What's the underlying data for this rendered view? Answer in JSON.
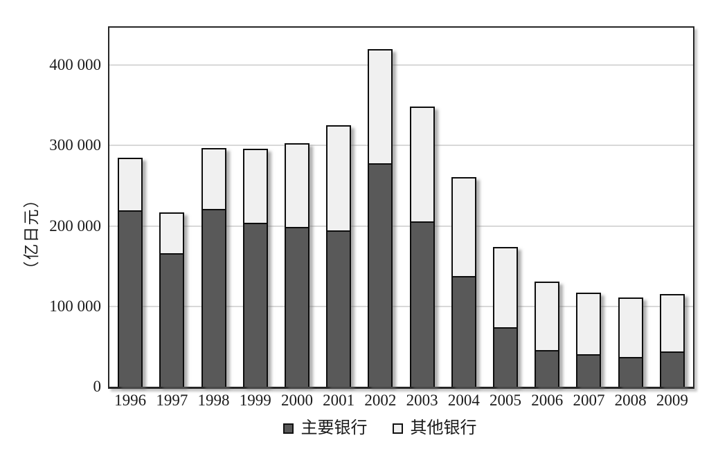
{
  "chart_data": {
    "type": "bar",
    "stacked": true,
    "title": "",
    "xlabel": "",
    "ylabel": "（亿日元）",
    "categories": [
      "1996",
      "1997",
      "1998",
      "1999",
      "2000",
      "2001",
      "2002",
      "2003",
      "2004",
      "2005",
      "2006",
      "2007",
      "2008",
      "2009"
    ],
    "series": [
      {
        "name": "主要银行",
        "color": "#595959",
        "values": [
          218000,
          164000,
          219000,
          202000,
          197000,
          193000,
          276000,
          204000,
          136000,
          72000,
          44000,
          39000,
          35000,
          42000
        ]
      },
      {
        "name": "其他银行",
        "color": "#f0f0f0",
        "values": [
          67000,
          53000,
          78000,
          94000,
          106000,
          132000,
          144000,
          144000,
          125000,
          102000,
          87000,
          78000,
          76000,
          73000
        ]
      }
    ],
    "totals": [
      285000,
      217000,
      297000,
      296000,
      303000,
      325000,
      420000,
      348000,
      261000,
      174000,
      131000,
      117000,
      111000,
      115000
    ],
    "ylim": [
      0,
      450000
    ],
    "yticks": [
      {
        "value": 0,
        "label": "0"
      },
      {
        "value": 100000,
        "label": "100 000"
      },
      {
        "value": 200000,
        "label": "200 000"
      },
      {
        "value": 300000,
        "label": "300 000"
      },
      {
        "value": 400000,
        "label": "400 000"
      }
    ],
    "grid": true,
    "legend_position": "bottom"
  },
  "colors": {
    "frame": "#262626",
    "gridline": "#d8d8d8",
    "bar_border": "#0d0d0d",
    "text": "#1a1a1a",
    "background": "#ffffff"
  }
}
